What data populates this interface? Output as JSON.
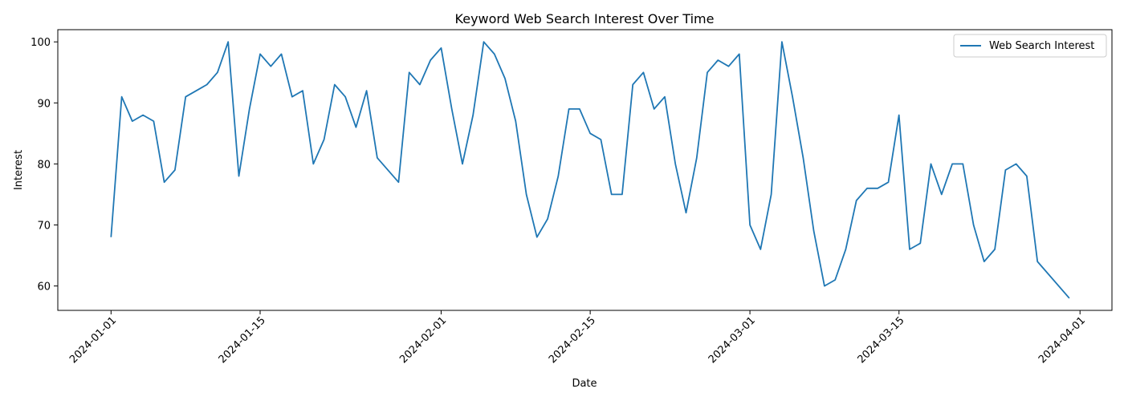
{
  "chart_data": {
    "type": "line",
    "title": "Keyword Web Search Interest Over Time",
    "xlabel": "Date",
    "ylabel": "Interest",
    "legend_position": "top-right",
    "grid": false,
    "line_color": "#1f77b4",
    "xlim": [
      "2023-12-27",
      "2024-04-04"
    ],
    "ylim": [
      56,
      102
    ],
    "x_ticks": [
      "2024-01-01",
      "2024-01-15",
      "2024-02-01",
      "2024-02-15",
      "2024-03-01",
      "2024-03-15",
      "2024-04-01"
    ],
    "y_ticks": [
      60,
      70,
      80,
      90,
      100
    ],
    "series": [
      {
        "name": "Web Search Interest",
        "x": [
          "2024-01-01",
          "2024-01-02",
          "2024-01-03",
          "2024-01-04",
          "2024-01-05",
          "2024-01-06",
          "2024-01-07",
          "2024-01-08",
          "2024-01-10",
          "2024-01-11",
          "2024-01-12",
          "2024-01-13",
          "2024-01-14",
          "2024-01-15",
          "2024-01-16",
          "2024-01-17",
          "2024-01-18",
          "2024-01-19",
          "2024-01-20",
          "2024-01-21",
          "2024-01-22",
          "2024-01-23",
          "2024-01-24",
          "2024-01-25",
          "2024-01-26",
          "2024-01-28",
          "2024-01-29",
          "2024-01-30",
          "2024-01-31",
          "2024-02-01",
          "2024-02-02",
          "2024-02-03",
          "2024-02-04",
          "2024-02-05",
          "2024-02-06",
          "2024-02-07",
          "2024-02-08",
          "2024-02-09",
          "2024-02-10",
          "2024-02-11",
          "2024-02-12",
          "2024-02-13",
          "2024-02-14",
          "2024-02-15",
          "2024-02-16",
          "2024-02-17",
          "2024-02-18",
          "2024-02-19",
          "2024-02-20",
          "2024-02-21",
          "2024-02-22",
          "2024-02-23",
          "2024-02-24",
          "2024-02-25",
          "2024-02-26",
          "2024-02-27",
          "2024-02-28",
          "2024-02-29",
          "2024-03-01",
          "2024-03-02",
          "2024-03-03",
          "2024-03-04",
          "2024-03-05",
          "2024-03-06",
          "2024-03-07",
          "2024-03-08",
          "2024-03-09",
          "2024-03-10",
          "2024-03-11",
          "2024-03-12",
          "2024-03-13",
          "2024-03-14",
          "2024-03-15",
          "2024-03-16",
          "2024-03-17",
          "2024-03-18",
          "2024-03-19",
          "2024-03-20",
          "2024-03-21",
          "2024-03-22",
          "2024-03-23",
          "2024-03-24",
          "2024-03-25",
          "2024-03-26",
          "2024-03-27",
          "2024-03-28",
          "2024-03-31"
        ],
        "values": [
          68,
          91,
          87,
          88,
          87,
          77,
          79,
          91,
          93,
          95,
          100,
          78,
          89,
          98,
          96,
          98,
          91,
          92,
          80,
          84,
          93,
          91,
          86,
          92,
          81,
          77,
          95,
          93,
          97,
          99,
          89,
          80,
          88,
          100,
          98,
          94,
          87,
          75,
          68,
          71,
          78,
          89,
          89,
          85,
          84,
          75,
          75,
          93,
          95,
          89,
          91,
          80,
          72,
          81,
          95,
          97,
          96,
          98,
          70,
          66,
          75,
          100,
          91,
          81,
          69,
          60,
          61,
          66,
          74,
          76,
          76,
          77,
          88,
          66,
          67,
          80,
          75,
          80,
          80,
          70,
          64,
          66,
          79,
          80,
          78,
          64,
          58
        ]
      }
    ]
  }
}
